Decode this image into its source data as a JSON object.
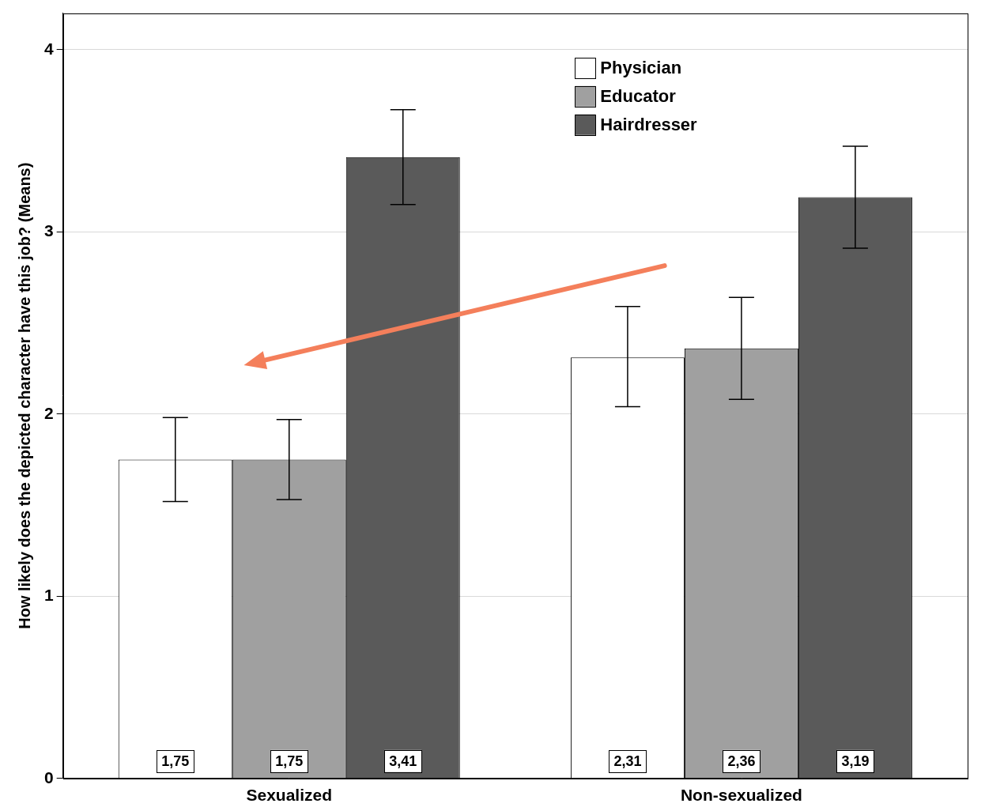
{
  "chart_data": {
    "type": "bar",
    "y_label": "How likely does the depicted character have this job? (Means)",
    "categories": [
      "Sexualized",
      "Non-sexualized"
    ],
    "series": [
      {
        "name": "Physician",
        "color": "#ffffff",
        "values": [
          1.75,
          2.31
        ],
        "value_labels": [
          "1,75",
          "2,31"
        ],
        "error_low": [
          1.52,
          2.04
        ],
        "error_high": [
          1.98,
          2.59
        ]
      },
      {
        "name": "Educator",
        "color": "#a0a0a0",
        "values": [
          1.75,
          2.36
        ],
        "value_labels": [
          "1,75",
          "2,36"
        ],
        "error_low": [
          1.53,
          2.08
        ],
        "error_high": [
          1.97,
          2.64
        ]
      },
      {
        "name": "Hairdresser",
        "color": "#5a5a5a",
        "values": [
          3.41,
          3.19
        ],
        "value_labels": [
          "3,41",
          "3,19"
        ],
        "error_low": [
          3.15,
          2.91
        ],
        "error_high": [
          3.67,
          3.47
        ]
      }
    ],
    "ylim": [
      0,
      4.2
    ],
    "yticks": [
      0,
      1,
      2,
      3,
      4
    ],
    "grid": true,
    "legend": "top right",
    "data_labels": true
  }
}
